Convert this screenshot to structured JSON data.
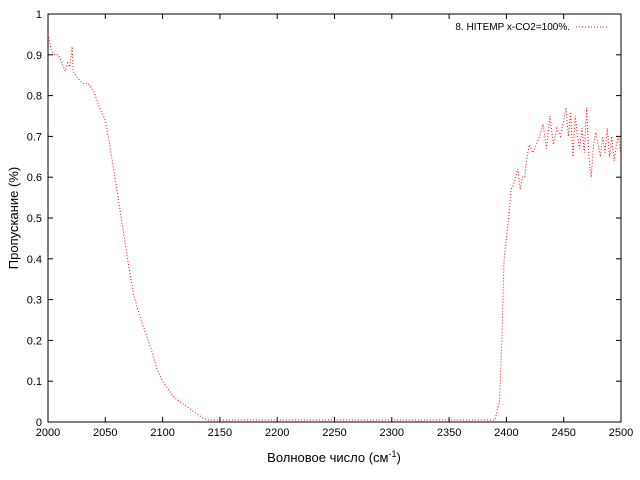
{
  "chart_data": {
    "type": "line",
    "xlabel": "Волновое число (см",
    "xlabel_sup": "-1",
    "xlabel_end": ")",
    "ylabel": "Пропускание (%)",
    "xlim": [
      2000,
      2500
    ],
    "ylim": [
      0,
      1
    ],
    "xticks": [
      "2000",
      "2050",
      "2100",
      "2150",
      "2200",
      "2250",
      "2300",
      "2350",
      "2400",
      "2450",
      "2500"
    ],
    "yticks": [
      "0",
      "0.1",
      "0.2",
      "0.3",
      "0.4",
      "0.5",
      "0.6",
      "0.7",
      "0.8",
      "0.9",
      "1"
    ],
    "grid": false,
    "legend_position": "top-right",
    "series": [
      {
        "name": "8. HITEMP x-CO2=100%.",
        "color": "#ff0000",
        "line_style": "dotted",
        "x": [
          2000,
          2003,
          2006,
          2009,
          2012,
          2015,
          2017,
          2019,
          2021,
          2022,
          2024,
          2027,
          2030,
          2035,
          2040,
          2045,
          2050,
          2055,
          2060,
          2065,
          2070,
          2075,
          2080,
          2085,
          2090,
          2095,
          2100,
          2105,
          2110,
          2115,
          2120,
          2125,
          2130,
          2135,
          2140,
          2145,
          2150,
          2200,
          2300,
          2390,
          2394,
          2396,
          2398,
          2400,
          2402,
          2404,
          2406,
          2408,
          2410,
          2412,
          2414,
          2416,
          2418,
          2420,
          2423,
          2426,
          2429,
          2432,
          2435,
          2438,
          2441,
          2444,
          2447,
          2450,
          2452,
          2454,
          2456,
          2458,
          2460,
          2462,
          2464,
          2466,
          2468,
          2470,
          2472,
          2474,
          2476,
          2478,
          2480,
          2482,
          2484,
          2486,
          2488,
          2490,
          2492,
          2494,
          2496,
          2498,
          2500
        ],
        "y": [
          0.95,
          0.91,
          0.9,
          0.9,
          0.88,
          0.86,
          0.88,
          0.87,
          0.92,
          0.86,
          0.85,
          0.84,
          0.83,
          0.83,
          0.81,
          0.77,
          0.74,
          0.66,
          0.57,
          0.48,
          0.39,
          0.31,
          0.26,
          0.22,
          0.18,
          0.13,
          0.1,
          0.08,
          0.06,
          0.05,
          0.04,
          0.03,
          0.02,
          0.01,
          0.005,
          0.005,
          0.005,
          0.005,
          0.005,
          0.005,
          0.05,
          0.2,
          0.4,
          0.45,
          0.5,
          0.57,
          0.58,
          0.6,
          0.62,
          0.57,
          0.6,
          0.6,
          0.65,
          0.68,
          0.66,
          0.68,
          0.7,
          0.73,
          0.67,
          0.75,
          0.68,
          0.72,
          0.7,
          0.74,
          0.77,
          0.7,
          0.76,
          0.65,
          0.75,
          0.7,
          0.67,
          0.72,
          0.66,
          0.77,
          0.65,
          0.6,
          0.68,
          0.71,
          0.68,
          0.65,
          0.7,
          0.66,
          0.72,
          0.65,
          0.7,
          0.64,
          0.68,
          0.7,
          0.65
        ]
      }
    ]
  }
}
